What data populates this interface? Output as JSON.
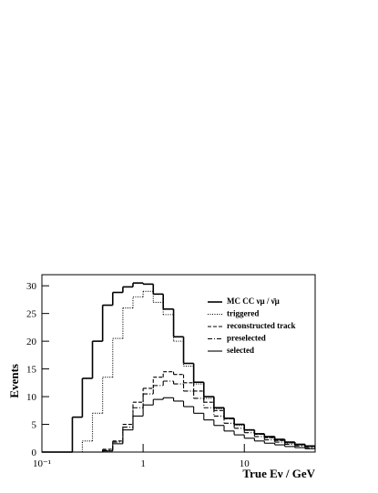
{
  "chart_data": {
    "type": "histogram",
    "xlabel": "True Eν / GeV",
    "ylabel": "Events",
    "bins": [
      0.1,
      0.126,
      0.158,
      0.2,
      0.251,
      0.316,
      0.398,
      0.501,
      0.631,
      0.794,
      1,
      1.26,
      1.58,
      2,
      2.51,
      3.16,
      3.98,
      5.01,
      6.31,
      7.94,
      10,
      12.6,
      15.8,
      20,
      25.1,
      31.6,
      39.8,
      50.1
    ],
    "xlim": [
      0.1,
      50.1
    ],
    "log_x": true,
    "xticks": [
      {
        "value": 0.1,
        "label": "10⁻¹"
      },
      1,
      10
    ],
    "ylim": [
      0,
      32
    ],
    "yticks": [
      0,
      5,
      10,
      15,
      20,
      25,
      30
    ],
    "legend": "upper right",
    "series": [
      {
        "name": "MC CC νμ / ν̄μ",
        "color": "#000000",
        "dash": "solid",
        "values": [
          0,
          0,
          0,
          6.3,
          13.3,
          20,
          26.5,
          28.8,
          29.8,
          30.5,
          30.3,
          28.5,
          25.8,
          20.8,
          16,
          12.6,
          10,
          8,
          6.1,
          5,
          4,
          3.3,
          2.8,
          2.3,
          1.8,
          1.4,
          1.1
        ]
      },
      {
        "name": "triggered",
        "color": "#000000",
        "dash": "dotted",
        "values": [
          0,
          0,
          0,
          0,
          2,
          7,
          13.5,
          20.5,
          26,
          28,
          29,
          27,
          24.8,
          20,
          15.5,
          12.3,
          9.7,
          7.8,
          6,
          4.8,
          3.9,
          3.2,
          2.6,
          2.1,
          1.6,
          1.3,
          1
        ]
      },
      {
        "name": "reconstructed track",
        "color": "#000000",
        "dash": "dashed",
        "values": [
          0,
          0,
          0,
          0,
          0,
          0,
          0.5,
          2,
          5,
          9,
          11.5,
          13.5,
          14.5,
          14,
          12.5,
          11,
          9,
          7.5,
          6,
          5,
          4,
          3.2,
          2.6,
          2.1,
          1.7,
          1.3,
          1
        ]
      },
      {
        "name": "preselected",
        "color": "#000000",
        "dash": "dashdot",
        "values": [
          0,
          0,
          0,
          0,
          0,
          0,
          0.3,
          1.8,
          4.5,
          8,
          10.5,
          12,
          12.8,
          12.3,
          11,
          9.7,
          8,
          6.5,
          5.2,
          4.3,
          3.5,
          2.8,
          2.2,
          1.8,
          1.4,
          1.1,
          0.8
        ]
      },
      {
        "name": "selected",
        "color": "#000000",
        "dash": "solid",
        "values": [
          0,
          0,
          0,
          0,
          0,
          0,
          0.2,
          1.5,
          4,
          6.5,
          8.5,
          9.5,
          9.8,
          9.2,
          8.2,
          7,
          5.8,
          4.8,
          3.8,
          3.1,
          2.5,
          2,
          1.6,
          1.3,
          1,
          0.8,
          0.6
        ]
      }
    ]
  }
}
